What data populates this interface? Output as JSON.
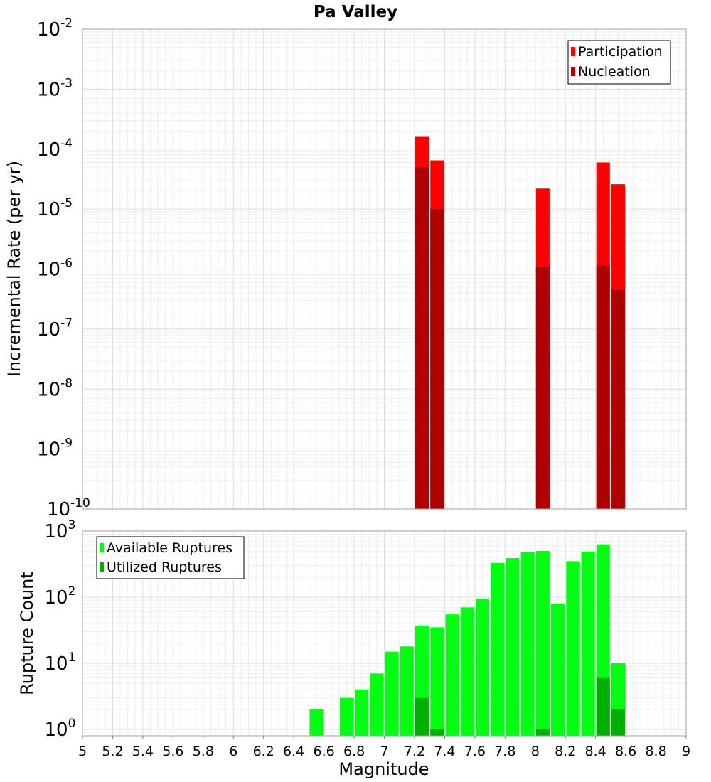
{
  "chart_data": [
    {
      "type": "bar",
      "title": "Pa Valley",
      "xlabel": "",
      "ylabel": "Incremental Rate (per yr)",
      "xlim": [
        5,
        9
      ],
      "ylim": [
        1e-10,
        0.01
      ],
      "yscale": "log",
      "grid": true,
      "legend_position": "top-right",
      "bar_width": 0.09,
      "series": [
        {
          "name": "Participation",
          "color": "#ff0000",
          "points": [
            {
              "x": 7.25,
              "y": 0.00016
            },
            {
              "x": 7.35,
              "y": 6.5e-05
            },
            {
              "x": 8.05,
              "y": 2.2e-05
            },
            {
              "x": 8.45,
              "y": 6e-05
            },
            {
              "x": 8.55,
              "y": 2.6e-05
            }
          ]
        },
        {
          "name": "Nucleation",
          "color": "#b00000",
          "points": [
            {
              "x": 7.25,
              "y": 5e-05
            },
            {
              "x": 7.35,
              "y": 1e-05
            },
            {
              "x": 8.05,
              "y": 1.1e-06
            },
            {
              "x": 8.45,
              "y": 1.15e-06
            },
            {
              "x": 8.55,
              "y": 4.5e-07
            }
          ]
        }
      ],
      "y_ticks": [
        {
          "base": "10",
          "exp": "-2",
          "value": 0.01
        },
        {
          "base": "10",
          "exp": "-3",
          "value": 0.001
        },
        {
          "base": "10",
          "exp": "-4",
          "value": 0.0001
        },
        {
          "base": "10",
          "exp": "-5",
          "value": 1e-05
        },
        {
          "base": "10",
          "exp": "-6",
          "value": 1e-06
        },
        {
          "base": "10",
          "exp": "-7",
          "value": 1e-07
        },
        {
          "base": "10",
          "exp": "-8",
          "value": 1e-08
        },
        {
          "base": "10",
          "exp": "-9",
          "value": 1e-09
        },
        {
          "base": "10",
          "exp": "-10",
          "value": 1e-10
        }
      ]
    },
    {
      "type": "bar",
      "title": "",
      "xlabel": "Magnitude",
      "ylabel": "Rupture Count",
      "xlim": [
        5,
        9
      ],
      "ylim": [
        0.8,
        1000
      ],
      "yscale": "log",
      "grid": true,
      "legend_position": "top-left",
      "bar_width": 0.09,
      "series": [
        {
          "name": "Available Ruptures",
          "color": "#00ff11",
          "points": [
            {
              "x": 6.55,
              "y": 2
            },
            {
              "x": 6.75,
              "y": 3
            },
            {
              "x": 6.85,
              "y": 4
            },
            {
              "x": 6.95,
              "y": 7
            },
            {
              "x": 7.05,
              "y": 15
            },
            {
              "x": 7.15,
              "y": 18
            },
            {
              "x": 7.25,
              "y": 37
            },
            {
              "x": 7.35,
              "y": 35
            },
            {
              "x": 7.45,
              "y": 55
            },
            {
              "x": 7.55,
              "y": 70
            },
            {
              "x": 7.65,
              "y": 95
            },
            {
              "x": 7.75,
              "y": 330
            },
            {
              "x": 7.85,
              "y": 390
            },
            {
              "x": 7.95,
              "y": 480
            },
            {
              "x": 8.05,
              "y": 500
            },
            {
              "x": 8.15,
              "y": 80
            },
            {
              "x": 8.25,
              "y": 350
            },
            {
              "x": 8.35,
              "y": 490
            },
            {
              "x": 8.45,
              "y": 630
            },
            {
              "x": 8.55,
              "y": 10
            }
          ]
        },
        {
          "name": "Utilized Ruptures",
          "color": "#00b000",
          "points": [
            {
              "x": 7.25,
              "y": 3
            },
            {
              "x": 7.35,
              "y": 1
            },
            {
              "x": 8.05,
              "y": 1
            },
            {
              "x": 8.45,
              "y": 6
            },
            {
              "x": 8.55,
              "y": 2
            }
          ]
        }
      ],
      "y_ticks": [
        {
          "base": "10",
          "exp": "3",
          "value": 1000
        },
        {
          "base": "10",
          "exp": "2",
          "value": 100
        },
        {
          "base": "10",
          "exp": "1",
          "value": 10
        },
        {
          "base": "10",
          "exp": "0",
          "value": 1
        }
      ],
      "x_ticks": [
        "5",
        "5.2",
        "5.4",
        "5.6",
        "5.8",
        "6",
        "6.2",
        "6.4",
        "6.6",
        "6.8",
        "7",
        "7.2",
        "7.4",
        "7.6",
        "7.8",
        "8",
        "8.2",
        "8.4",
        "8.6",
        "8.8",
        "9"
      ]
    }
  ]
}
